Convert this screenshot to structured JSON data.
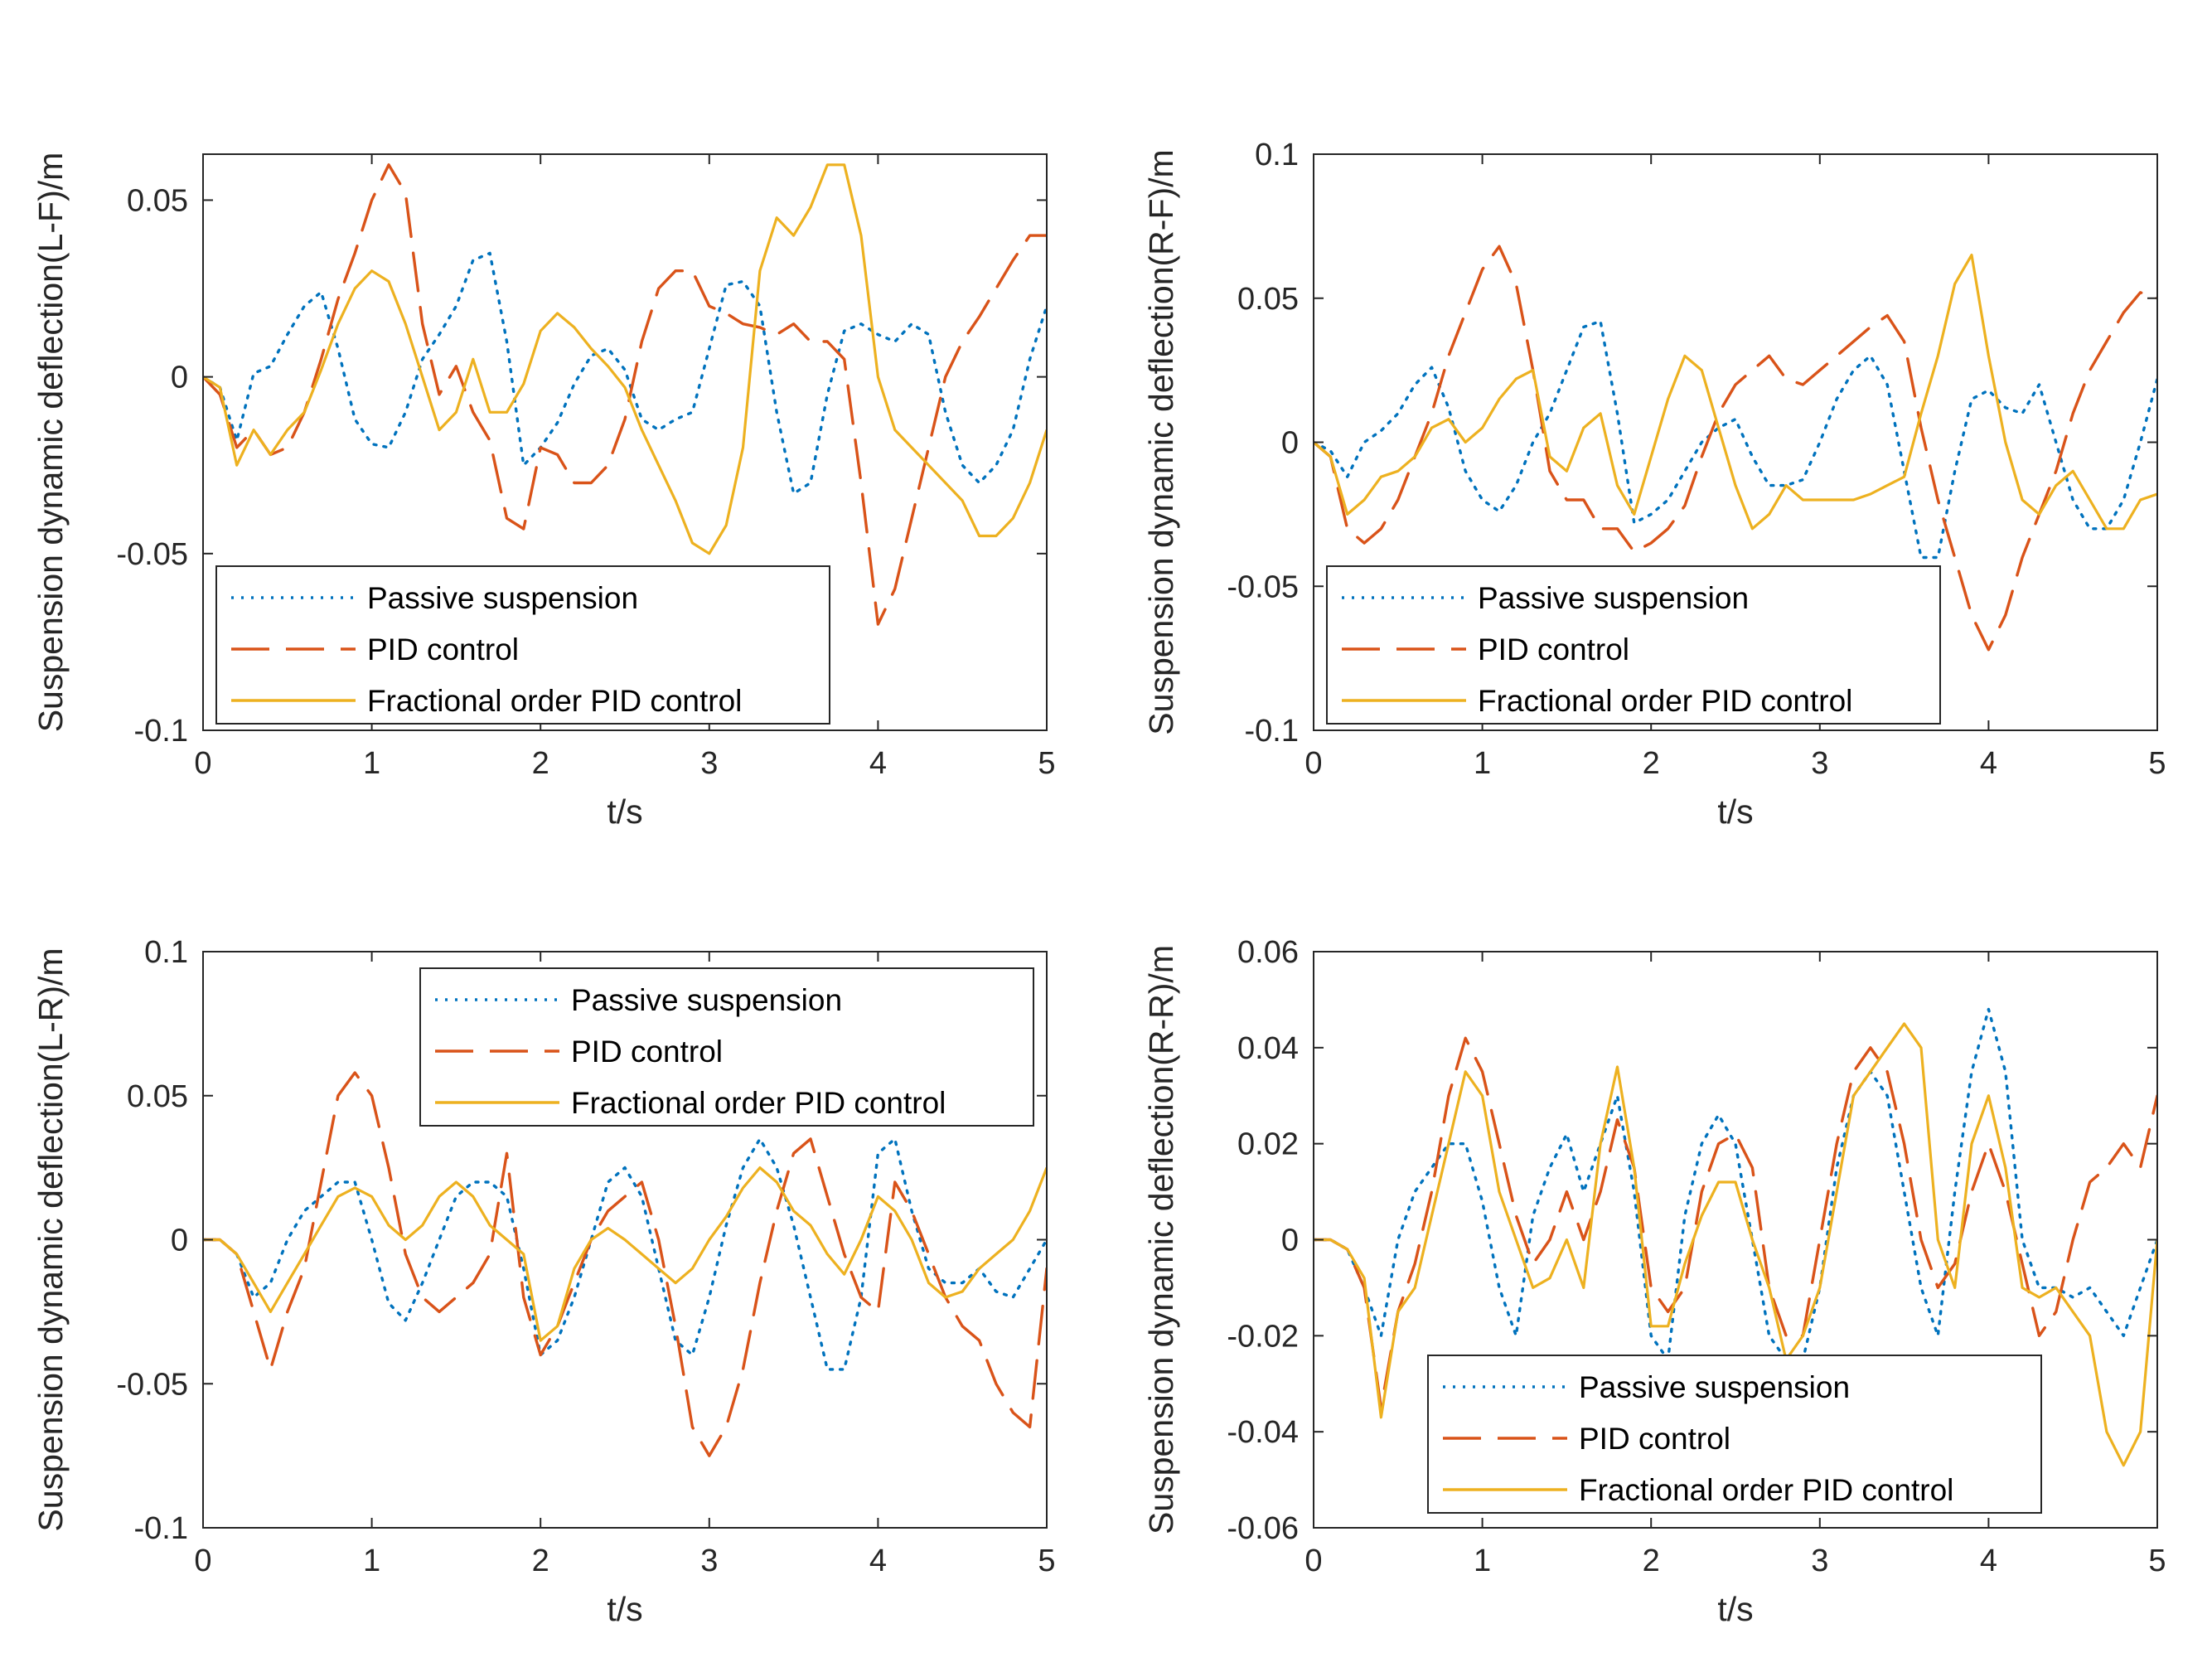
{
  "colors": {
    "passive": "#0072BD",
    "pid": "#D95319",
    "fopid": "#EDB120",
    "axis": "#262626"
  },
  "chart_data": [
    {
      "type": "line",
      "xlabel": "t/s",
      "ylabel": "Suspension dynamic deflection(L-F)/m",
      "xlim": [
        0,
        5
      ],
      "ylim": [
        -0.1,
        0.063
      ],
      "xticks": [
        0,
        1,
        2,
        3,
        4,
        5
      ],
      "xtick_labels": [
        "0",
        "1",
        "2",
        "3",
        "4",
        "5"
      ],
      "yticks": [
        -0.1,
        -0.05,
        0,
        0.05
      ],
      "ytick_labels": [
        "-0.1",
        "-0.05",
        "0",
        "0.05"
      ],
      "legend_position": "bottom-left",
      "x": [
        0,
        0.1,
        0.2,
        0.3,
        0.4,
        0.5,
        0.6,
        0.7,
        0.8,
        0.9,
        1.0,
        1.1,
        1.2,
        1.3,
        1.4,
        1.5,
        1.6,
        1.7,
        1.8,
        1.9,
        2.0,
        2.1,
        2.2,
        2.3,
        2.4,
        2.5,
        2.6,
        2.7,
        2.8,
        2.9,
        3.0,
        3.1,
        3.2,
        3.3,
        3.4,
        3.5,
        3.6,
        3.7,
        3.8,
        3.9,
        4.0,
        4.1,
        4.2,
        4.3,
        4.4,
        4.5,
        4.6,
        4.7,
        4.8,
        4.9,
        5.0
      ],
      "series": [
        {
          "name": "Passive suspension",
          "style": "dotted",
          "values": [
            0,
            -0.003,
            -0.018,
            0.001,
            0.003,
            0.012,
            0.02,
            0.024,
            0.008,
            -0.012,
            -0.019,
            -0.02,
            -0.01,
            0.005,
            0.012,
            0.02,
            0.033,
            0.035,
            0.01,
            -0.025,
            -0.02,
            -0.013,
            -0.002,
            0.006,
            0.008,
            0.002,
            -0.012,
            -0.015,
            -0.012,
            -0.01,
            0.008,
            0.026,
            0.027,
            0.02,
            -0.01,
            -0.033,
            -0.03,
            -0.005,
            0.013,
            0.015,
            0.012,
            0.01,
            0.015,
            0.012,
            -0.01,
            -0.025,
            -0.03,
            -0.025,
            -0.015,
            0.005,
            0.02
          ]
        },
        {
          "name": "PID control",
          "style": "dashed",
          "values": [
            0,
            -0.005,
            -0.02,
            -0.015,
            -0.022,
            -0.02,
            -0.01,
            0.005,
            0.022,
            0.035,
            0.05,
            0.06,
            0.052,
            0.015,
            -0.005,
            0.003,
            -0.01,
            -0.018,
            -0.04,
            -0.043,
            -0.02,
            -0.022,
            -0.03,
            -0.03,
            -0.025,
            -0.012,
            0.01,
            0.025,
            0.03,
            0.03,
            0.02,
            0.018,
            0.015,
            0.014,
            0.012,
            0.015,
            0.01,
            0.01,
            0.005,
            -0.03,
            -0.07,
            -0.06,
            -0.04,
            -0.02,
            0.0,
            0.01,
            0.017,
            0.025,
            0.033,
            0.04,
            0.04
          ]
        },
        {
          "name": "Fractional order PID control",
          "style": "solid",
          "values": [
            0,
            -0.003,
            -0.025,
            -0.015,
            -0.022,
            -0.015,
            -0.01,
            0.002,
            0.015,
            0.025,
            0.03,
            0.027,
            0.015,
            0.0,
            -0.015,
            -0.01,
            0.005,
            -0.01,
            -0.01,
            -0.002,
            0.013,
            0.018,
            0.014,
            0.008,
            0.003,
            -0.003,
            -0.015,
            -0.025,
            -0.035,
            -0.047,
            -0.05,
            -0.042,
            -0.02,
            0.03,
            0.045,
            0.04,
            0.048,
            0.06,
            0.06,
            0.04,
            0.0,
            -0.015,
            -0.02,
            -0.025,
            -0.03,
            -0.035,
            -0.045,
            -0.045,
            -0.04,
            -0.03,
            -0.015
          ]
        }
      ]
    },
    {
      "type": "line",
      "xlabel": "t/s",
      "ylabel": "Suspension dynamic deflection(R-F)/m",
      "xlim": [
        0,
        5
      ],
      "ylim": [
        -0.1,
        0.1
      ],
      "xticks": [
        0,
        1,
        2,
        3,
        4,
        5
      ],
      "xtick_labels": [
        "0",
        "1",
        "2",
        "3",
        "4",
        "5"
      ],
      "yticks": [
        -0.1,
        -0.05,
        0,
        0.05,
        0.1
      ],
      "ytick_labels": [
        "-0.1",
        "-0.05",
        "0",
        "0.05",
        "0.1"
      ],
      "legend_position": "bottom-left",
      "x": [
        0,
        0.1,
        0.2,
        0.3,
        0.4,
        0.5,
        0.6,
        0.7,
        0.8,
        0.9,
        1.0,
        1.1,
        1.2,
        1.3,
        1.4,
        1.5,
        1.6,
        1.7,
        1.8,
        1.9,
        2.0,
        2.1,
        2.2,
        2.3,
        2.4,
        2.5,
        2.6,
        2.7,
        2.8,
        2.9,
        3.0,
        3.1,
        3.2,
        3.3,
        3.4,
        3.5,
        3.6,
        3.7,
        3.8,
        3.9,
        4.0,
        4.1,
        4.2,
        4.3,
        4.4,
        4.5,
        4.6,
        4.7,
        4.8,
        4.9,
        5.0
      ],
      "series": [
        {
          "name": "Passive suspension",
          "style": "dotted",
          "values": [
            0,
            -0.003,
            -0.012,
            0.0,
            0.004,
            0.01,
            0.02,
            0.026,
            0.012,
            -0.01,
            -0.02,
            -0.024,
            -0.015,
            0.0,
            0.01,
            0.025,
            0.04,
            0.042,
            0.01,
            -0.028,
            -0.025,
            -0.02,
            -0.01,
            0.0,
            0.005,
            0.008,
            -0.005,
            -0.015,
            -0.015,
            -0.013,
            0.0,
            0.015,
            0.025,
            0.03,
            0.02,
            -0.01,
            -0.04,
            -0.04,
            -0.01,
            0.015,
            0.018,
            0.012,
            0.01,
            0.02,
            0.0,
            -0.02,
            -0.03,
            -0.03,
            -0.02,
            0.0,
            0.022
          ]
        },
        {
          "name": "PID control",
          "style": "dashed",
          "values": [
            0,
            -0.005,
            -0.03,
            -0.035,
            -0.03,
            -0.02,
            -0.005,
            0.01,
            0.03,
            0.045,
            0.06,
            0.068,
            0.055,
            0.025,
            -0.01,
            -0.02,
            -0.02,
            -0.03,
            -0.03,
            -0.038,
            -0.035,
            -0.03,
            -0.022,
            -0.005,
            0.01,
            0.02,
            0.025,
            0.03,
            0.022,
            0.02,
            0.025,
            0.03,
            0.035,
            0.04,
            0.044,
            0.035,
            0.005,
            -0.02,
            -0.04,
            -0.06,
            -0.072,
            -0.06,
            -0.04,
            -0.025,
            -0.01,
            0.01,
            0.025,
            0.035,
            0.045,
            0.052,
            0.05
          ]
        },
        {
          "name": "Fractional order PID control",
          "style": "solid",
          "values": [
            0,
            -0.005,
            -0.025,
            -0.02,
            -0.012,
            -0.01,
            -0.005,
            0.005,
            0.008,
            0.0,
            0.005,
            0.015,
            0.022,
            0.025,
            -0.005,
            -0.01,
            0.005,
            0.01,
            -0.015,
            -0.025,
            -0.005,
            0.015,
            0.03,
            0.025,
            0.005,
            -0.015,
            -0.03,
            -0.025,
            -0.015,
            -0.02,
            -0.02,
            -0.02,
            -0.02,
            -0.018,
            -0.015,
            -0.012,
            0.01,
            0.03,
            0.055,
            0.065,
            0.03,
            0.0,
            -0.02,
            -0.025,
            -0.015,
            -0.01,
            -0.02,
            -0.03,
            -0.03,
            -0.02,
            -0.018
          ]
        }
      ]
    },
    {
      "type": "line",
      "xlabel": "t/s",
      "ylabel": "Suspension dynamic deflection(L-R)/m",
      "xlim": [
        0,
        5
      ],
      "ylim": [
        -0.1,
        0.1
      ],
      "xticks": [
        0,
        1,
        2,
        3,
        4,
        5
      ],
      "xtick_labels": [
        "0",
        "1",
        "2",
        "3",
        "4",
        "5"
      ],
      "yticks": [
        -0.1,
        -0.05,
        0,
        0.05,
        0.1
      ],
      "ytick_labels": [
        "-0.1",
        "-0.05",
        "0",
        "0.05",
        "0.1"
      ],
      "legend_position": "top-right",
      "x": [
        0,
        0.1,
        0.2,
        0.3,
        0.4,
        0.5,
        0.6,
        0.7,
        0.8,
        0.9,
        1.0,
        1.1,
        1.2,
        1.3,
        1.4,
        1.5,
        1.6,
        1.7,
        1.8,
        1.9,
        2.0,
        2.1,
        2.2,
        2.3,
        2.4,
        2.5,
        2.6,
        2.7,
        2.8,
        2.9,
        3.0,
        3.1,
        3.2,
        3.3,
        3.4,
        3.5,
        3.6,
        3.7,
        3.8,
        3.9,
        4.0,
        4.1,
        4.2,
        4.3,
        4.4,
        4.5,
        4.6,
        4.7,
        4.8,
        4.9,
        5.0
      ],
      "series": [
        {
          "name": "Passive suspension",
          "style": "dotted",
          "values": [
            0,
            0.0,
            -0.005,
            -0.02,
            -0.015,
            0.0,
            0.01,
            0.015,
            0.02,
            0.02,
            0.0,
            -0.022,
            -0.028,
            -0.015,
            0.0,
            0.015,
            0.02,
            0.02,
            0.015,
            -0.01,
            -0.04,
            -0.035,
            -0.02,
            0.0,
            0.02,
            0.025,
            0.015,
            -0.01,
            -0.035,
            -0.04,
            -0.02,
            0.005,
            0.025,
            0.035,
            0.025,
            0.005,
            -0.02,
            -0.045,
            -0.045,
            -0.02,
            0.03,
            0.035,
            0.01,
            -0.01,
            -0.015,
            -0.015,
            -0.01,
            -0.018,
            -0.02,
            -0.01,
            0.0
          ]
        },
        {
          "name": "PID control",
          "style": "dashed",
          "values": [
            0,
            0.0,
            -0.005,
            -0.025,
            -0.045,
            -0.025,
            -0.01,
            0.02,
            0.05,
            0.058,
            0.05,
            0.025,
            -0.005,
            -0.02,
            -0.025,
            -0.02,
            -0.015,
            -0.005,
            0.03,
            -0.02,
            -0.04,
            -0.03,
            -0.015,
            0.0,
            0.01,
            0.015,
            0.02,
            0.0,
            -0.03,
            -0.065,
            -0.075,
            -0.065,
            -0.045,
            -0.015,
            0.01,
            0.03,
            0.035,
            0.015,
            -0.005,
            -0.02,
            -0.025,
            0.02,
            0.01,
            -0.005,
            -0.02,
            -0.03,
            -0.035,
            -0.05,
            -0.06,
            -0.065,
            -0.01
          ]
        },
        {
          "name": "Fractional order PID control",
          "style": "solid",
          "values": [
            0,
            0.0,
            -0.005,
            -0.015,
            -0.025,
            -0.015,
            -0.005,
            0.005,
            0.015,
            0.018,
            0.015,
            0.005,
            0.0,
            0.005,
            0.015,
            0.02,
            0.015,
            0.005,
            0.0,
            -0.005,
            -0.035,
            -0.03,
            -0.01,
            0.0,
            0.004,
            0.0,
            -0.005,
            -0.01,
            -0.015,
            -0.01,
            0.0,
            0.008,
            0.018,
            0.025,
            0.02,
            0.01,
            0.005,
            -0.005,
            -0.012,
            0.0,
            0.015,
            0.01,
            0.0,
            -0.015,
            -0.02,
            -0.018,
            -0.01,
            -0.005,
            0.0,
            0.01,
            0.025
          ]
        }
      ]
    },
    {
      "type": "line",
      "xlabel": "t/s",
      "ylabel": "Suspension dynamic deflection(R-R)/m",
      "xlim": [
        0,
        5
      ],
      "ylim": [
        -0.06,
        0.06
      ],
      "xticks": [
        0,
        1,
        2,
        3,
        4,
        5
      ],
      "xtick_labels": [
        "0",
        "1",
        "2",
        "3",
        "4",
        "5"
      ],
      "yticks": [
        -0.06,
        -0.04,
        -0.02,
        0,
        0.02,
        0.04,
        0.06
      ],
      "ytick_labels": [
        "-0.06",
        "-0.04",
        "-0.02",
        "0",
        "0.02",
        "0.04",
        "0.06"
      ],
      "legend_position": "bottom-right",
      "x": [
        0,
        0.1,
        0.2,
        0.3,
        0.4,
        0.5,
        0.6,
        0.7,
        0.8,
        0.9,
        1.0,
        1.1,
        1.2,
        1.3,
        1.4,
        1.5,
        1.6,
        1.7,
        1.8,
        1.9,
        2.0,
        2.1,
        2.2,
        2.3,
        2.4,
        2.5,
        2.6,
        2.7,
        2.8,
        2.9,
        3.0,
        3.1,
        3.2,
        3.3,
        3.4,
        3.5,
        3.6,
        3.7,
        3.8,
        3.9,
        4.0,
        4.1,
        4.2,
        4.3,
        4.4,
        4.5,
        4.6,
        4.7,
        4.8,
        4.9,
        5.0
      ],
      "series": [
        {
          "name": "Passive suspension",
          "style": "dotted",
          "values": [
            0,
            0.0,
            -0.002,
            -0.01,
            -0.02,
            0.0,
            0.01,
            0.015,
            0.02,
            0.02,
            0.008,
            -0.01,
            -0.02,
            0.005,
            0.015,
            0.022,
            0.01,
            0.02,
            0.03,
            0.01,
            -0.02,
            -0.025,
            0.005,
            0.02,
            0.026,
            0.02,
            0.0,
            -0.02,
            -0.025,
            -0.025,
            -0.01,
            0.015,
            0.03,
            0.035,
            0.03,
            0.01,
            -0.01,
            -0.02,
            0.01,
            0.035,
            0.048,
            0.035,
            0.0,
            -0.01,
            -0.01,
            -0.012,
            -0.01,
            -0.015,
            -0.02,
            -0.01,
            0.0
          ]
        },
        {
          "name": "PID control",
          "style": "dashed",
          "values": [
            0,
            0.0,
            -0.002,
            -0.01,
            -0.035,
            -0.015,
            -0.005,
            0.01,
            0.03,
            0.042,
            0.035,
            0.02,
            0.005,
            -0.005,
            0.0,
            0.01,
            0.0,
            0.01,
            0.025,
            0.015,
            -0.01,
            -0.015,
            -0.01,
            0.01,
            0.02,
            0.022,
            0.015,
            -0.01,
            -0.02,
            -0.02,
            0.0,
            0.02,
            0.035,
            0.04,
            0.035,
            0.02,
            0.0,
            -0.01,
            -0.005,
            0.01,
            0.02,
            0.01,
            -0.005,
            -0.02,
            -0.015,
            0.0,
            0.012,
            0.015,
            0.02,
            0.015,
            0.03
          ]
        },
        {
          "name": "Fractional order PID control",
          "style": "solid",
          "values": [
            0,
            0.0,
            -0.002,
            -0.008,
            -0.037,
            -0.015,
            -0.01,
            0.005,
            0.02,
            0.035,
            0.03,
            0.01,
            0.0,
            -0.01,
            -0.008,
            0.0,
            -0.01,
            0.02,
            0.036,
            0.015,
            -0.018,
            -0.018,
            -0.005,
            0.005,
            0.012,
            0.012,
            0.0,
            -0.01,
            -0.025,
            -0.02,
            -0.01,
            0.01,
            0.03,
            0.035,
            0.04,
            0.045,
            0.04,
            0.0,
            -0.01,
            0.02,
            0.03,
            0.015,
            -0.01,
            -0.012,
            -0.01,
            -0.015,
            -0.02,
            -0.04,
            -0.047,
            -0.04,
            0.0
          ]
        }
      ]
    }
  ]
}
